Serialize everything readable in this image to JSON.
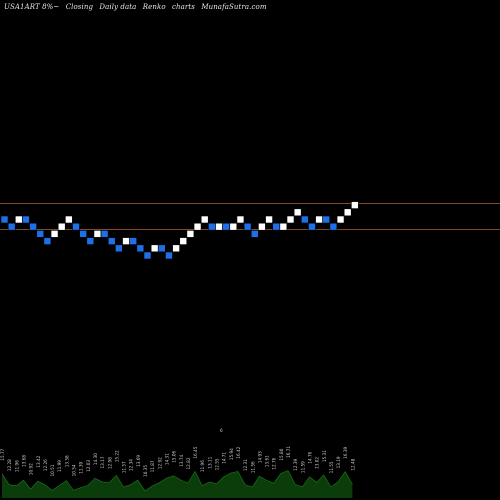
{
  "header": {
    "symbol": "USA1ART 8%~",
    "closing": "Closing",
    "interval": "Daily data",
    "kind": "Renko",
    "charts": "charts",
    "site": "MunafaSutra.com"
  },
  "colors": {
    "background": "#000000",
    "up_brick": "#ffffff",
    "down_brick": "#1e6fe8",
    "reference_line": "#b2602a",
    "volume_fill": "#0a3d0a",
    "volume_line": "#1f7a1f"
  },
  "chart_data": {
    "type": "renko",
    "reference_lines": [
      1,
      -1
    ],
    "bricks": [
      {
        "dir": "down",
        "level": 0
      },
      {
        "dir": "down",
        "level": -1
      },
      {
        "dir": "up",
        "level": 0
      },
      {
        "dir": "down",
        "level": 0
      },
      {
        "dir": "down",
        "level": -1
      },
      {
        "dir": "down",
        "level": -2
      },
      {
        "dir": "down",
        "level": -3
      },
      {
        "dir": "up",
        "level": -2
      },
      {
        "dir": "up",
        "level": -1
      },
      {
        "dir": "up",
        "level": 0
      },
      {
        "dir": "down",
        "level": -1
      },
      {
        "dir": "down",
        "level": -2
      },
      {
        "dir": "down",
        "level": -3
      },
      {
        "dir": "up",
        "level": -2
      },
      {
        "dir": "down",
        "level": -2
      },
      {
        "dir": "down",
        "level": -3
      },
      {
        "dir": "down",
        "level": -4
      },
      {
        "dir": "up",
        "level": -3
      },
      {
        "dir": "down",
        "level": -3
      },
      {
        "dir": "down",
        "level": -4
      },
      {
        "dir": "down",
        "level": -5
      },
      {
        "dir": "up",
        "level": -4
      },
      {
        "dir": "down",
        "level": -4
      },
      {
        "dir": "down",
        "level": -5
      },
      {
        "dir": "up",
        "level": -4
      },
      {
        "dir": "up",
        "level": -3
      },
      {
        "dir": "up",
        "level": -2
      },
      {
        "dir": "up",
        "level": -1
      },
      {
        "dir": "up",
        "level": 0
      },
      {
        "dir": "down",
        "level": -1
      },
      {
        "dir": "up",
        "level": -1
      },
      {
        "dir": "down",
        "level": -1
      },
      {
        "dir": "up",
        "level": -1
      },
      {
        "dir": "up",
        "level": 0
      },
      {
        "dir": "down",
        "level": -1
      },
      {
        "dir": "down",
        "level": -2
      },
      {
        "dir": "up",
        "level": -1
      },
      {
        "dir": "up",
        "level": 0
      },
      {
        "dir": "down",
        "level": -1
      },
      {
        "dir": "up",
        "level": -1
      },
      {
        "dir": "up",
        "level": 0
      },
      {
        "dir": "up",
        "level": 1
      },
      {
        "dir": "down",
        "level": 0
      },
      {
        "dir": "down",
        "level": -1
      },
      {
        "dir": "up",
        "level": 0
      },
      {
        "dir": "down",
        "level": 0
      },
      {
        "dir": "down",
        "level": -1
      },
      {
        "dir": "up",
        "level": 0
      },
      {
        "dir": "up",
        "level": 1
      },
      {
        "dir": "up",
        "level": 2
      }
    ],
    "volume_labels": [
      "15.77",
      "12.28",
      "11.96",
      "13.68",
      "10.92",
      "13.42",
      "12.26",
      "10.51",
      "11.99",
      "13.58",
      "10.54",
      "11.39",
      "12.03",
      "14.30",
      "13.17",
      "12.98",
      "15.22",
      "11.57",
      "12.34",
      "13.69",
      "10.35",
      "11.87",
      "12.92",
      "14.31",
      "15.06",
      "13.74",
      "12.82",
      "16.45",
      "11.96",
      "13.11",
      "12.55",
      "14.71",
      "15.94",
      "16.42",
      "12.31",
      "11.56",
      "14.93",
      "13.61",
      "12.76",
      "15.80",
      "16.71",
      "12.39",
      "11.59",
      "14.76",
      "13.02",
      "15.31",
      "11.55",
      "13.19",
      "16.39",
      "12.48"
    ],
    "volume_marker": "6"
  }
}
